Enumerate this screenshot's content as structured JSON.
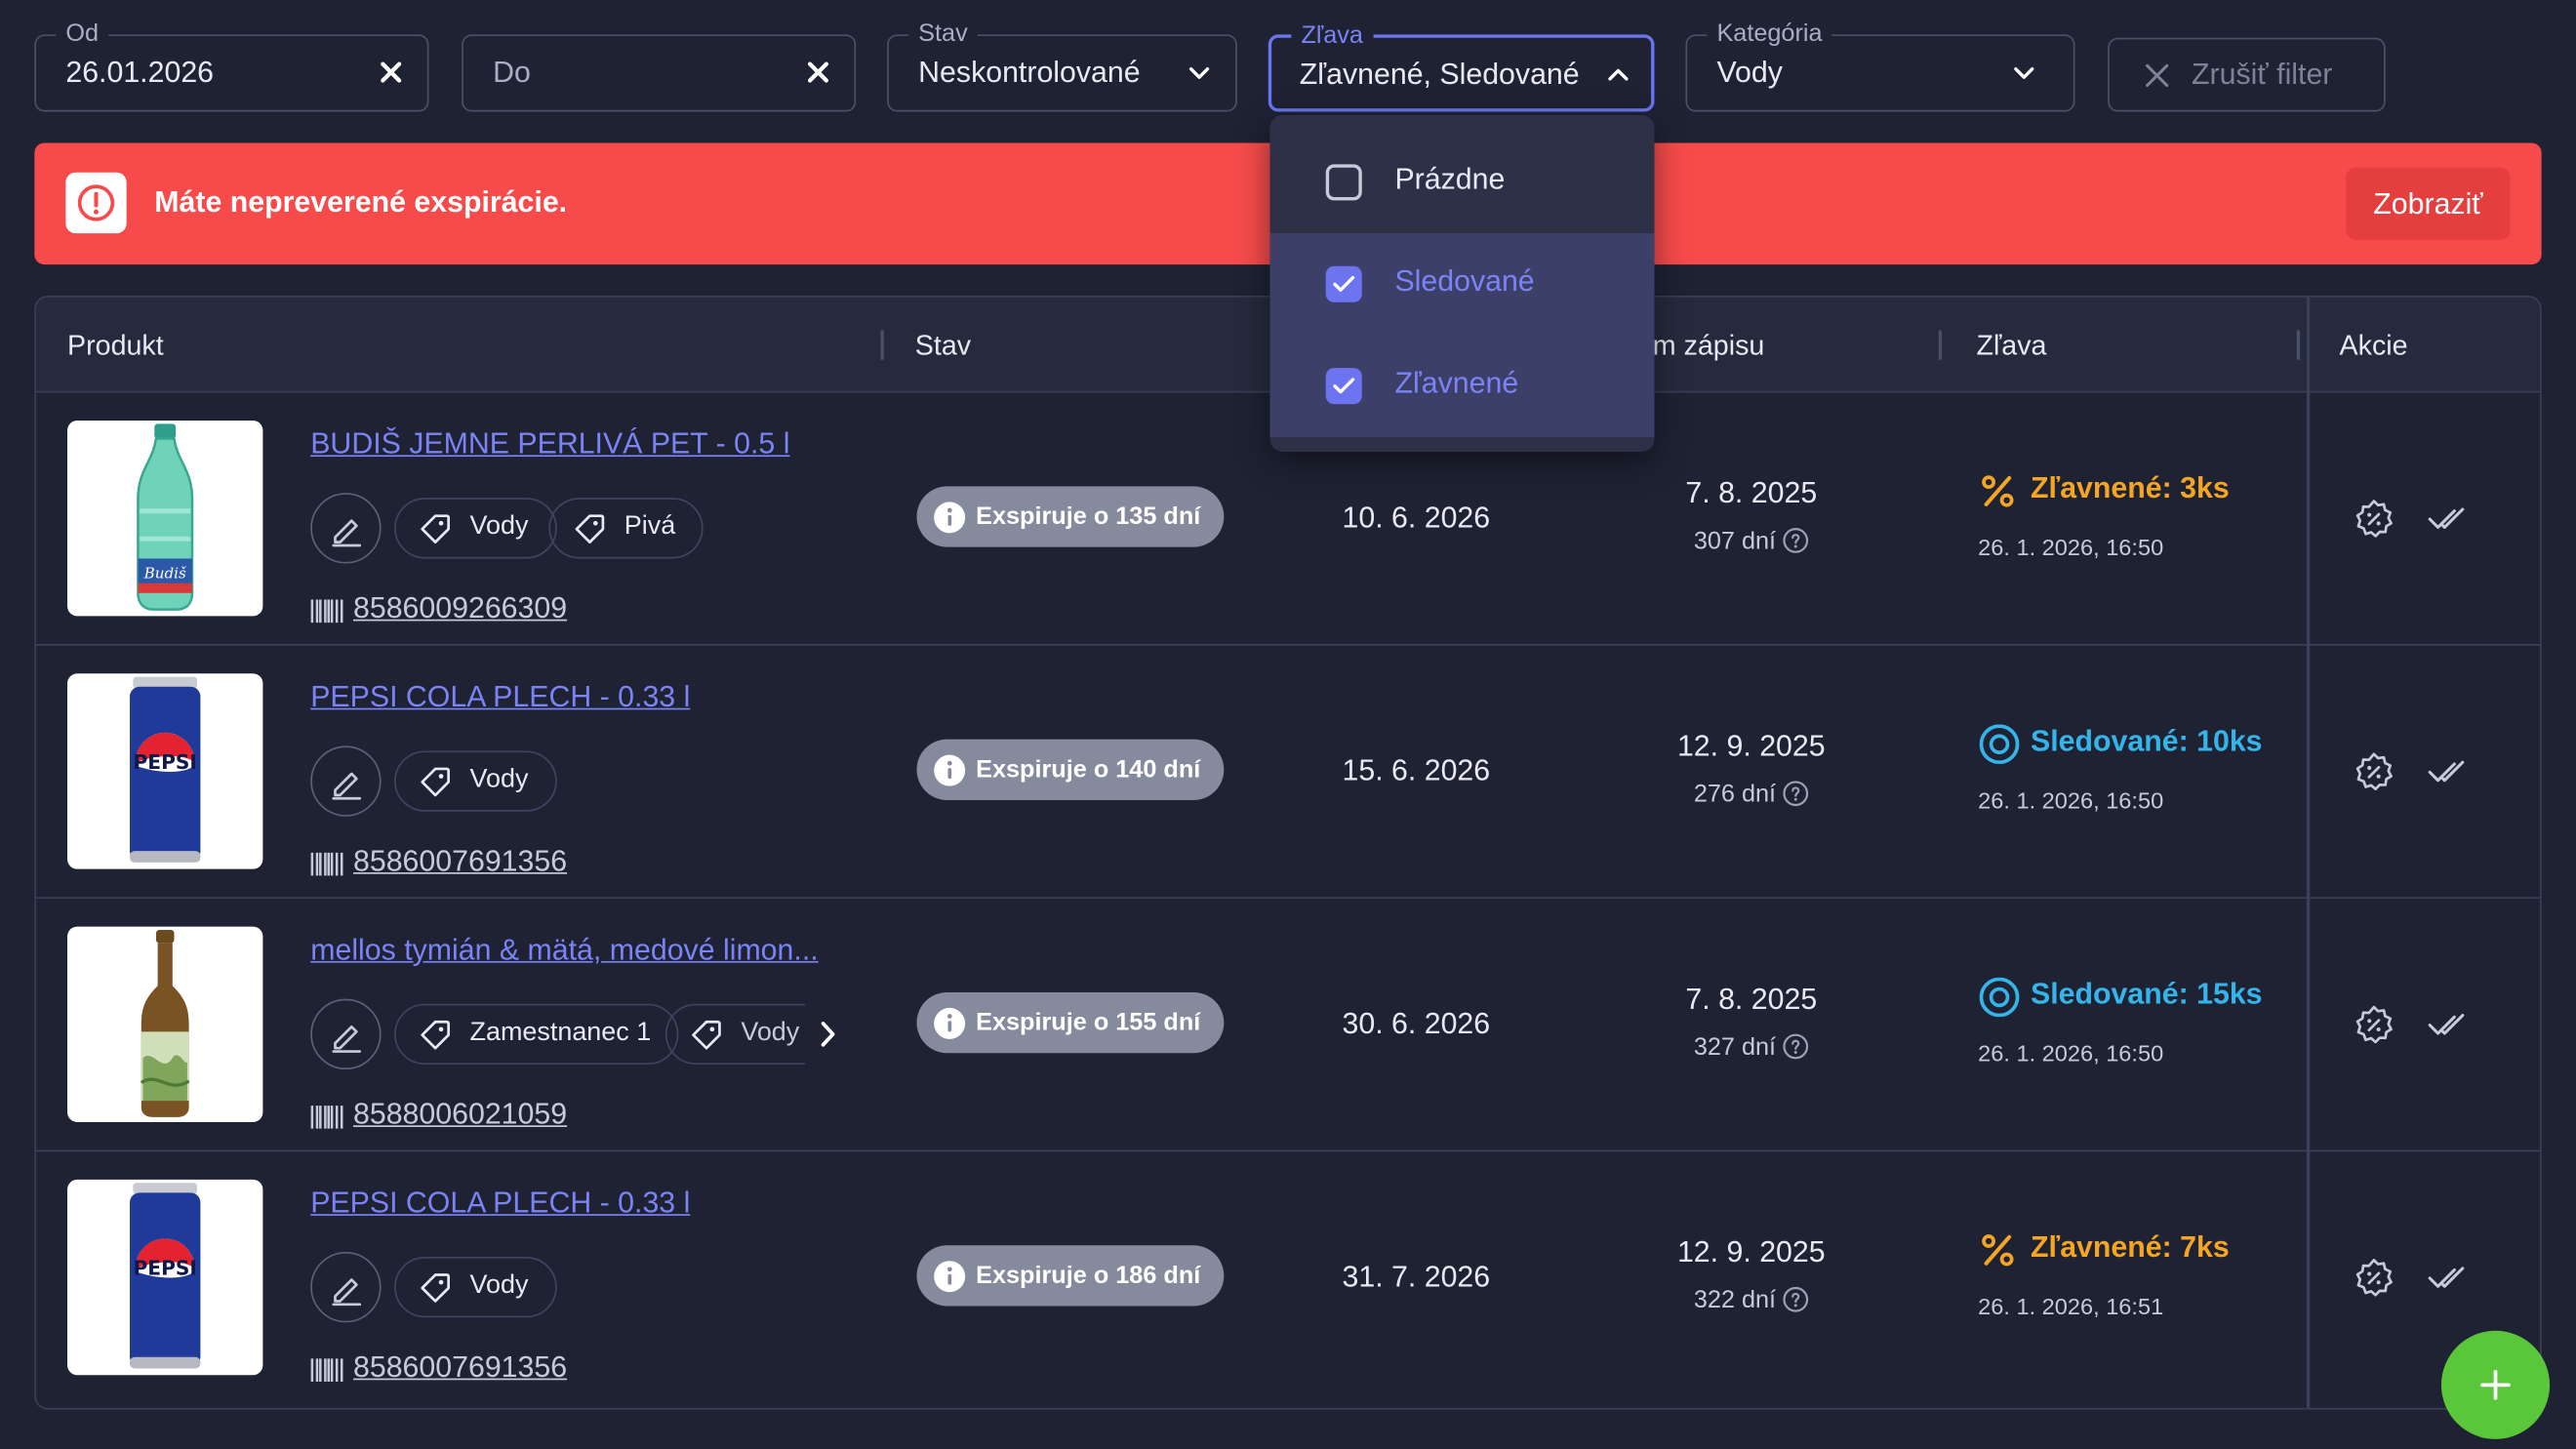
{
  "filters": {
    "od": {
      "label": "Od",
      "value": "26.01.2026"
    },
    "do": {
      "placeholder": "Do"
    },
    "stav": {
      "label": "Stav",
      "value": "Neskontrolované"
    },
    "zlava": {
      "label": "Zľava",
      "value": "Zľavnené, Sledované"
    },
    "kategoria": {
      "label": "Kategória",
      "value": "Vody"
    },
    "reset_label": "Zrušiť filter"
  },
  "alert": {
    "text": "Máte nepreverené exspirácie.",
    "button": "Zobraziť"
  },
  "dropdown": {
    "items": [
      {
        "label": "Prázdne",
        "checked": false
      },
      {
        "label": "Sledované",
        "checked": true
      },
      {
        "label": "Zľavnené",
        "checked": true
      }
    ]
  },
  "table": {
    "headers": {
      "produkt": "Produkt",
      "stav": "Stav",
      "zapis": "m zápisu",
      "zlava": "Zľava",
      "akcie": "Akcie"
    },
    "rows": [
      {
        "name": "BUDIŠ JEMNE PERLIVÁ PET - 0.5 l",
        "tags": [
          "Vody",
          "Pivá"
        ],
        "ean": "8586009266309",
        "status": "Exspiruje o 135 dní",
        "exp_date": "10. 6. 2026",
        "write_date": "7. 8. 2025",
        "write_days": "307 dní",
        "discount": "Zľavnené: 3ks",
        "discount_type": "zlavnene",
        "discount_time": "26. 1. 2026, 16:50",
        "image": "budis-bottle"
      },
      {
        "name": "PEPSI COLA PLECH - 0.33 l",
        "tags": [
          "Vody"
        ],
        "ean": "8586007691356",
        "status": "Exspiruje o 140 dní",
        "exp_date": "15. 6. 2026",
        "write_date": "12. 9. 2025",
        "write_days": "276 dní",
        "discount": "Sledované: 10ks",
        "discount_type": "sledovane",
        "discount_time": "26. 1. 2026, 16:50",
        "image": "pepsi-can"
      },
      {
        "name": "mellos tymián & mätá, medové limon...",
        "tags": [
          "Zamestnanec 1",
          "Vody"
        ],
        "ean": "8588006021059",
        "status": "Exspiruje o 155 dní",
        "exp_date": "30. 6. 2026",
        "write_date": "7. 8. 2025",
        "write_days": "327 dní",
        "discount": "Sledované: 15ks",
        "discount_type": "sledovane",
        "discount_time": "26. 1. 2026, 16:50",
        "image": "mellos-bottle"
      },
      {
        "name": "PEPSI COLA PLECH - 0.33 l",
        "tags": [
          "Vody"
        ],
        "ean": "8586007691356",
        "status": "Exspiruje o 186 dní",
        "exp_date": "31. 7. 2026",
        "write_date": "12. 9. 2025",
        "write_days": "322 dní",
        "discount": "Zľavnené: 7ks",
        "discount_type": "zlavnene",
        "discount_time": "26. 1. 2026, 16:51",
        "image": "pepsi-can"
      }
    ]
  },
  "colors": {
    "background": "#1e2233",
    "accent": "#6c74f0",
    "alert": "#f74b4b",
    "discounted": "#f5a524",
    "watched": "#35b4ea",
    "fab": "#5ac73a"
  }
}
